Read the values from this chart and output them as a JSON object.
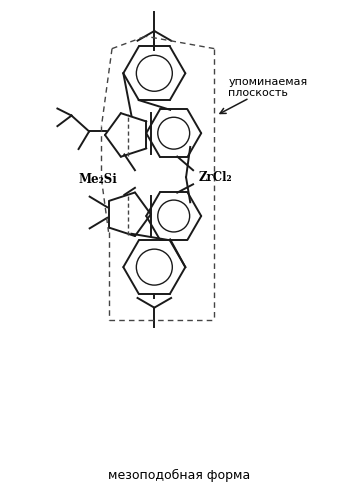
{
  "bg_color": "#ffffff",
  "fig_bg": "#ffffff",
  "line_color": "#1a1a1a",
  "dashed_color": "#444444",
  "text_color": "#000000",
  "label_me2si": "Me₂Si",
  "label_zrcl2": "ZrCl₂",
  "label_plane": "упоминаемая\nплоскость",
  "label_bottom": "мезоподобная форма",
  "lw": 1.4,
  "lw_thin": 1.0
}
